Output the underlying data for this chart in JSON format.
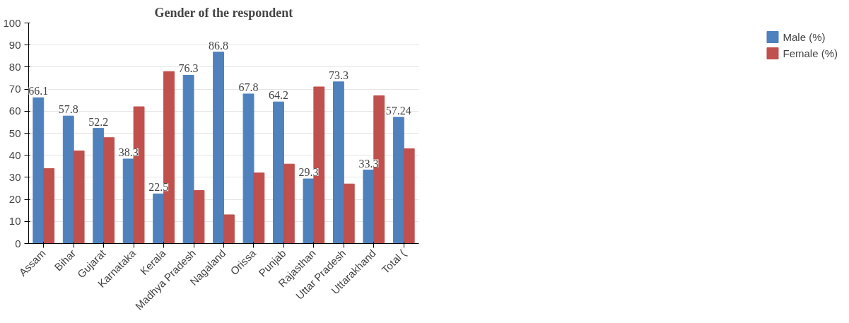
{
  "chart_data": {
    "type": "bar",
    "title": "Gender of the respondent",
    "categories": [
      "Assam",
      "Bihar",
      "Gujarat",
      "Karnataka",
      "Kerala",
      "Madhya Pradesh",
      "Nagaland",
      "Orissa",
      "Punjab",
      "Rajasthan",
      "Uttar Pradesh",
      "Uttarakhand",
      "Total ("
    ],
    "series": [
      {
        "name": "Male (%)",
        "color": "#4f81bd",
        "values": [
          66.1,
          57.8,
          52.2,
          38.3,
          22.5,
          76.3,
          86.8,
          67.8,
          64.2,
          29.3,
          73.3,
          33.3,
          57.24
        ],
        "value_labels": [
          "66.1",
          "57.8",
          "52.2",
          "38.3",
          "22.5",
          "76.3",
          "86.8",
          "67.8",
          "64.2",
          "29.3",
          "73.3",
          "33.3",
          "57.24"
        ]
      },
      {
        "name": "Female (%)",
        "color": "#c0504d",
        "values": [
          34,
          42,
          48,
          62,
          78,
          24,
          13,
          32,
          36,
          71,
          27,
          67,
          43
        ]
      }
    ],
    "ylim": [
      0,
      100
    ],
    "yticks": [
      0,
      10,
      20,
      30,
      40,
      50,
      60,
      70,
      80,
      90,
      100
    ],
    "grid": "y",
    "legend": "right"
  }
}
